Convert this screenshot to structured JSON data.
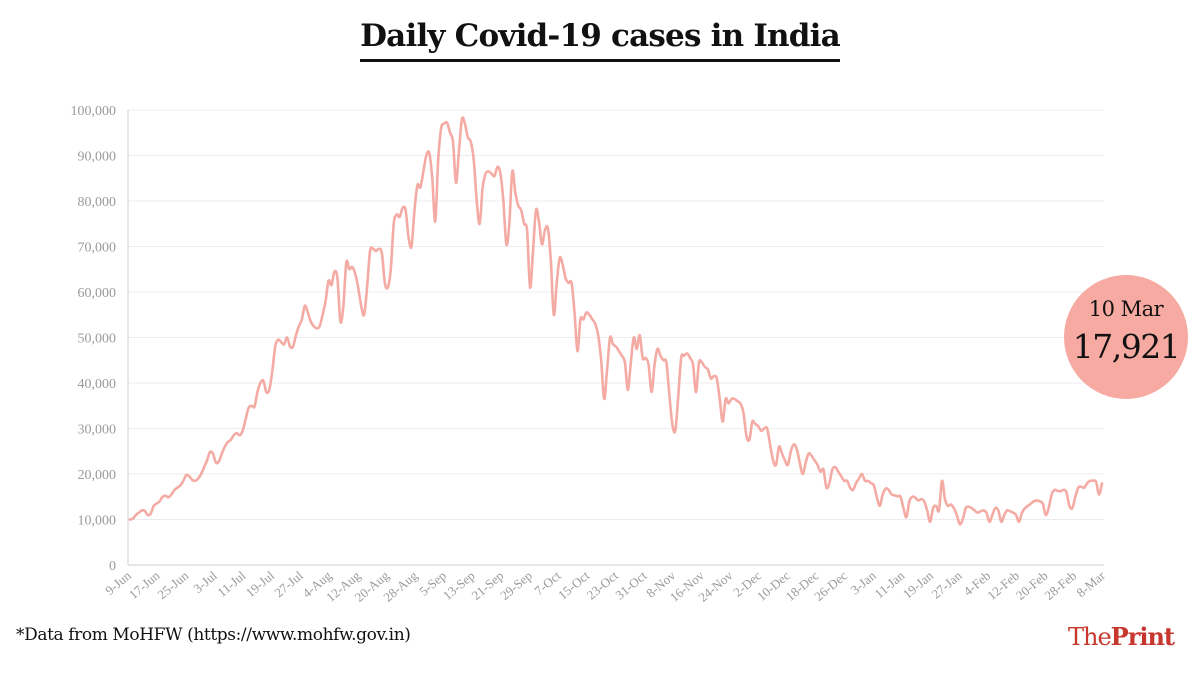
{
  "title": "Daily Covid-19 cases in India",
  "source": "*Data from MoHFW (https://www.mohfw.gov.in)",
  "logo": {
    "part1": "The",
    "part2": "Print"
  },
  "callout": {
    "date": "10 Mar",
    "value": "17,921"
  },
  "colors": {
    "line": "#f4aba4",
    "callout": "#f6aaa2",
    "brand": "#c8372d"
  },
  "chart_data": {
    "type": "line",
    "title": "Daily Covid-19 cases in India",
    "xlabel": "",
    "ylabel": "",
    "ylim": [
      0,
      100000
    ],
    "yticks": [
      0,
      10000,
      20000,
      30000,
      40000,
      50000,
      60000,
      70000,
      80000,
      90000,
      100000
    ],
    "ytick_labels": [
      "0",
      "10,000",
      "20,000",
      "30,000",
      "40,000",
      "50,000",
      "60,000",
      "70,000",
      "80,000",
      "90,000",
      "100,000"
    ],
    "xtick_labels": [
      "9-Jun",
      "17-Jun",
      "25-Jun",
      "3-Jul",
      "11-Jul",
      "19-Jul",
      "27-Jul",
      "4-Aug",
      "12-Aug",
      "20-Aug",
      "28-Aug",
      "5-Sep",
      "13-Sep",
      "21-Sep",
      "29-Sep",
      "7-Oct",
      "15-Oct",
      "23-Oct",
      "31-Oct",
      "8-Nov",
      "16-Nov",
      "24-Nov",
      "2-Dec",
      "10-Dec",
      "18-Dec",
      "26-Dec",
      "3-Jan",
      "11-Jan",
      "19-Jan",
      "27-Jan",
      "4-Feb",
      "12-Feb",
      "20-Feb",
      "28-Feb",
      "8-Mar"
    ],
    "grid": true,
    "legend": "none",
    "series": [
      {
        "values": [
          10000,
          10200,
          11000,
          11500,
          12000,
          11900,
          11000,
          11300,
          13000,
          13500,
          14000,
          15000,
          15200,
          14900,
          15500,
          16500,
          17000,
          17500,
          18500,
          19800,
          19500,
          18700,
          18500,
          19000,
          20000,
          21500,
          23000,
          24800,
          24500,
          22500,
          22800,
          24500,
          26000,
          27000,
          27500,
          28500,
          29000,
          28500,
          29500,
          32000,
          34500,
          35000,
          34800,
          38000,
          40000,
          40500,
          38000,
          38500,
          42500,
          48000,
          49500,
          49000,
          48500,
          50000,
          48000,
          48000,
          50500,
          52500,
          54000,
          57000,
          55500,
          53500,
          52500,
          52000,
          52500,
          55000,
          58000,
          62500,
          61500,
          64500,
          63000,
          53500,
          57000,
          66500,
          65000,
          65500,
          64000,
          61000,
          57000,
          55000,
          61000,
          69000,
          69500,
          69000,
          69500,
          68500,
          62000,
          61000,
          65000,
          75000,
          77000,
          76500,
          78500,
          78000,
          72000,
          70000,
          78000,
          83500,
          83000,
          86500,
          90000,
          90500,
          85000,
          75500,
          89000,
          96000,
          97000,
          97200,
          95000,
          93000,
          84000,
          91000,
          98000,
          97000,
          94000,
          93000,
          89000,
          80000,
          75000,
          83000,
          86000,
          86500,
          86000,
          85500,
          87500,
          86000,
          80000,
          70500,
          75000,
          86500,
          82000,
          79000,
          78000,
          75000,
          73500,
          61000,
          69000,
          78000,
          75500,
          70500,
          73500,
          74000,
          67000,
          55000,
          62000,
          67500,
          66000,
          63000,
          62000,
          62000,
          55500,
          47000,
          54000,
          54000,
          55500,
          55000,
          54000,
          53000,
          50500,
          45000,
          36500,
          43000,
          50000,
          48500,
          48000,
          47000,
          46000,
          44500,
          38500,
          44500,
          50000,
          47500,
          50500,
          45500,
          45500,
          44000,
          38000,
          44000,
          47500,
          46000,
          45000,
          44500,
          37500,
          31000,
          29500,
          37000,
          45500,
          46000,
          46500,
          45500,
          44000,
          38000,
          44500,
          44500,
          43500,
          43000,
          41000,
          41500,
          41000,
          36500,
          31500,
          36500,
          35500,
          36500,
          36500,
          36000,
          35500,
          33500,
          28500,
          27500,
          31500,
          31000,
          30500,
          29500,
          30000,
          30000,
          26500,
          23000,
          22000,
          26000,
          24500,
          23000,
          22000,
          25000,
          26500,
          25500,
          22500,
          20000,
          22500,
          24500,
          24000,
          23000,
          22000,
          20500,
          21000,
          17000,
          18000,
          21000,
          21500,
          20500,
          19500,
          18500,
          18500,
          17000,
          16500,
          18000,
          19000,
          20000,
          18500,
          18500,
          18000,
          17500,
          15000,
          13000,
          15500,
          16800,
          16500,
          15500,
          15300,
          15100,
          15000,
          12500,
          10500,
          14000,
          15000,
          14800,
          14200,
          14500,
          14000,
          12000,
          9500,
          12500,
          13000,
          12000,
          18500,
          14500,
          13000,
          13300,
          12500,
          11000,
          9000,
          10000,
          12500,
          12800,
          12500,
          12000,
          11500,
          11800,
          12000,
          11500,
          9500,
          11000,
          12500,
          12000,
          9500,
          11000,
          12000,
          11800,
          11500,
          11000,
          9500,
          11500,
          12500,
          13000,
          13500,
          14000,
          14200,
          14000,
          13500,
          11000,
          12500,
          15500,
          16500,
          16300,
          16200,
          16500,
          16000,
          13000,
          12500,
          15000,
          17000,
          17200,
          17000,
          18000,
          18500,
          18500,
          18300,
          15500,
          17921
        ]
      }
    ]
  }
}
